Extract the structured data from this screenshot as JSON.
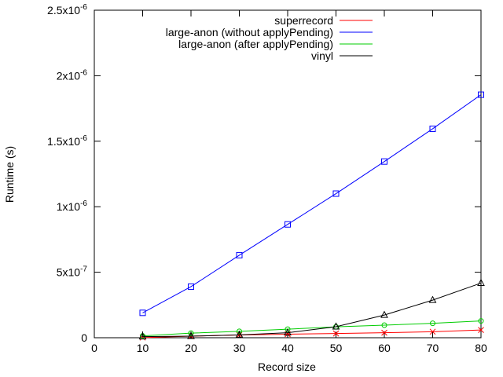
{
  "chart_data": {
    "type": "line",
    "xlabel": "Record size",
    "ylabel": "Runtime (s)",
    "xlim": [
      0,
      80
    ],
    "ylim": [
      0,
      2.5e-06
    ],
    "x_ticks": [
      0,
      10,
      20,
      30,
      40,
      50,
      60,
      70,
      80
    ],
    "x_tick_labels": [
      "0",
      "10",
      "20",
      "30",
      "40",
      "50",
      "60",
      "70",
      "80"
    ],
    "y_ticks": [
      {
        "value": 0,
        "base": "0",
        "exp": ""
      },
      {
        "value": 5e-07,
        "base": "5x10",
        "exp": "-7"
      },
      {
        "value": 1e-06,
        "base": "1x10",
        "exp": "-6"
      },
      {
        "value": 1.5e-06,
        "base": "1.5x10",
        "exp": "-6"
      },
      {
        "value": 2e-06,
        "base": "2x10",
        "exp": "-6"
      },
      {
        "value": 2.5e-06,
        "base": "2.5x10",
        "exp": "-6"
      }
    ],
    "grid": false,
    "legend_position": "top-right",
    "x": [
      10,
      20,
      30,
      40,
      50,
      60,
      70,
      80
    ],
    "series": [
      {
        "name": "superrecord",
        "color": "#ff0000",
        "marker": "cross",
        "values": [
          1e-09,
          1.2e-08,
          2.1e-08,
          2.7e-08,
          3.2e-08,
          3.8e-08,
          4.6e-08,
          5.9e-08
        ]
      },
      {
        "name": "large-anon (without applyPending)",
        "color": "#0000ff",
        "marker": "square",
        "values": [
          1.9e-07,
          3.9e-07,
          6.3e-07,
          8.65e-07,
          1.1e-06,
          1.345e-06,
          1.595e-06,
          1.855e-06
        ]
      },
      {
        "name": "large-anon (after applyPending)",
        "color": "#00cc00",
        "marker": "circle",
        "values": [
          1.4e-08,
          3.5e-08,
          4.9e-08,
          6.5e-08,
          8.3e-08,
          9.6e-08,
          1.1e-07,
          1.28e-07
        ]
      },
      {
        "name": "vinyl",
        "color": "#000000",
        "marker": "triangle",
        "values": [
          8e-09,
          1.2e-08,
          2.2e-08,
          3.8e-08,
          8.4e-08,
          1.73e-07,
          2.87e-07,
          4.17e-07
        ]
      }
    ]
  }
}
